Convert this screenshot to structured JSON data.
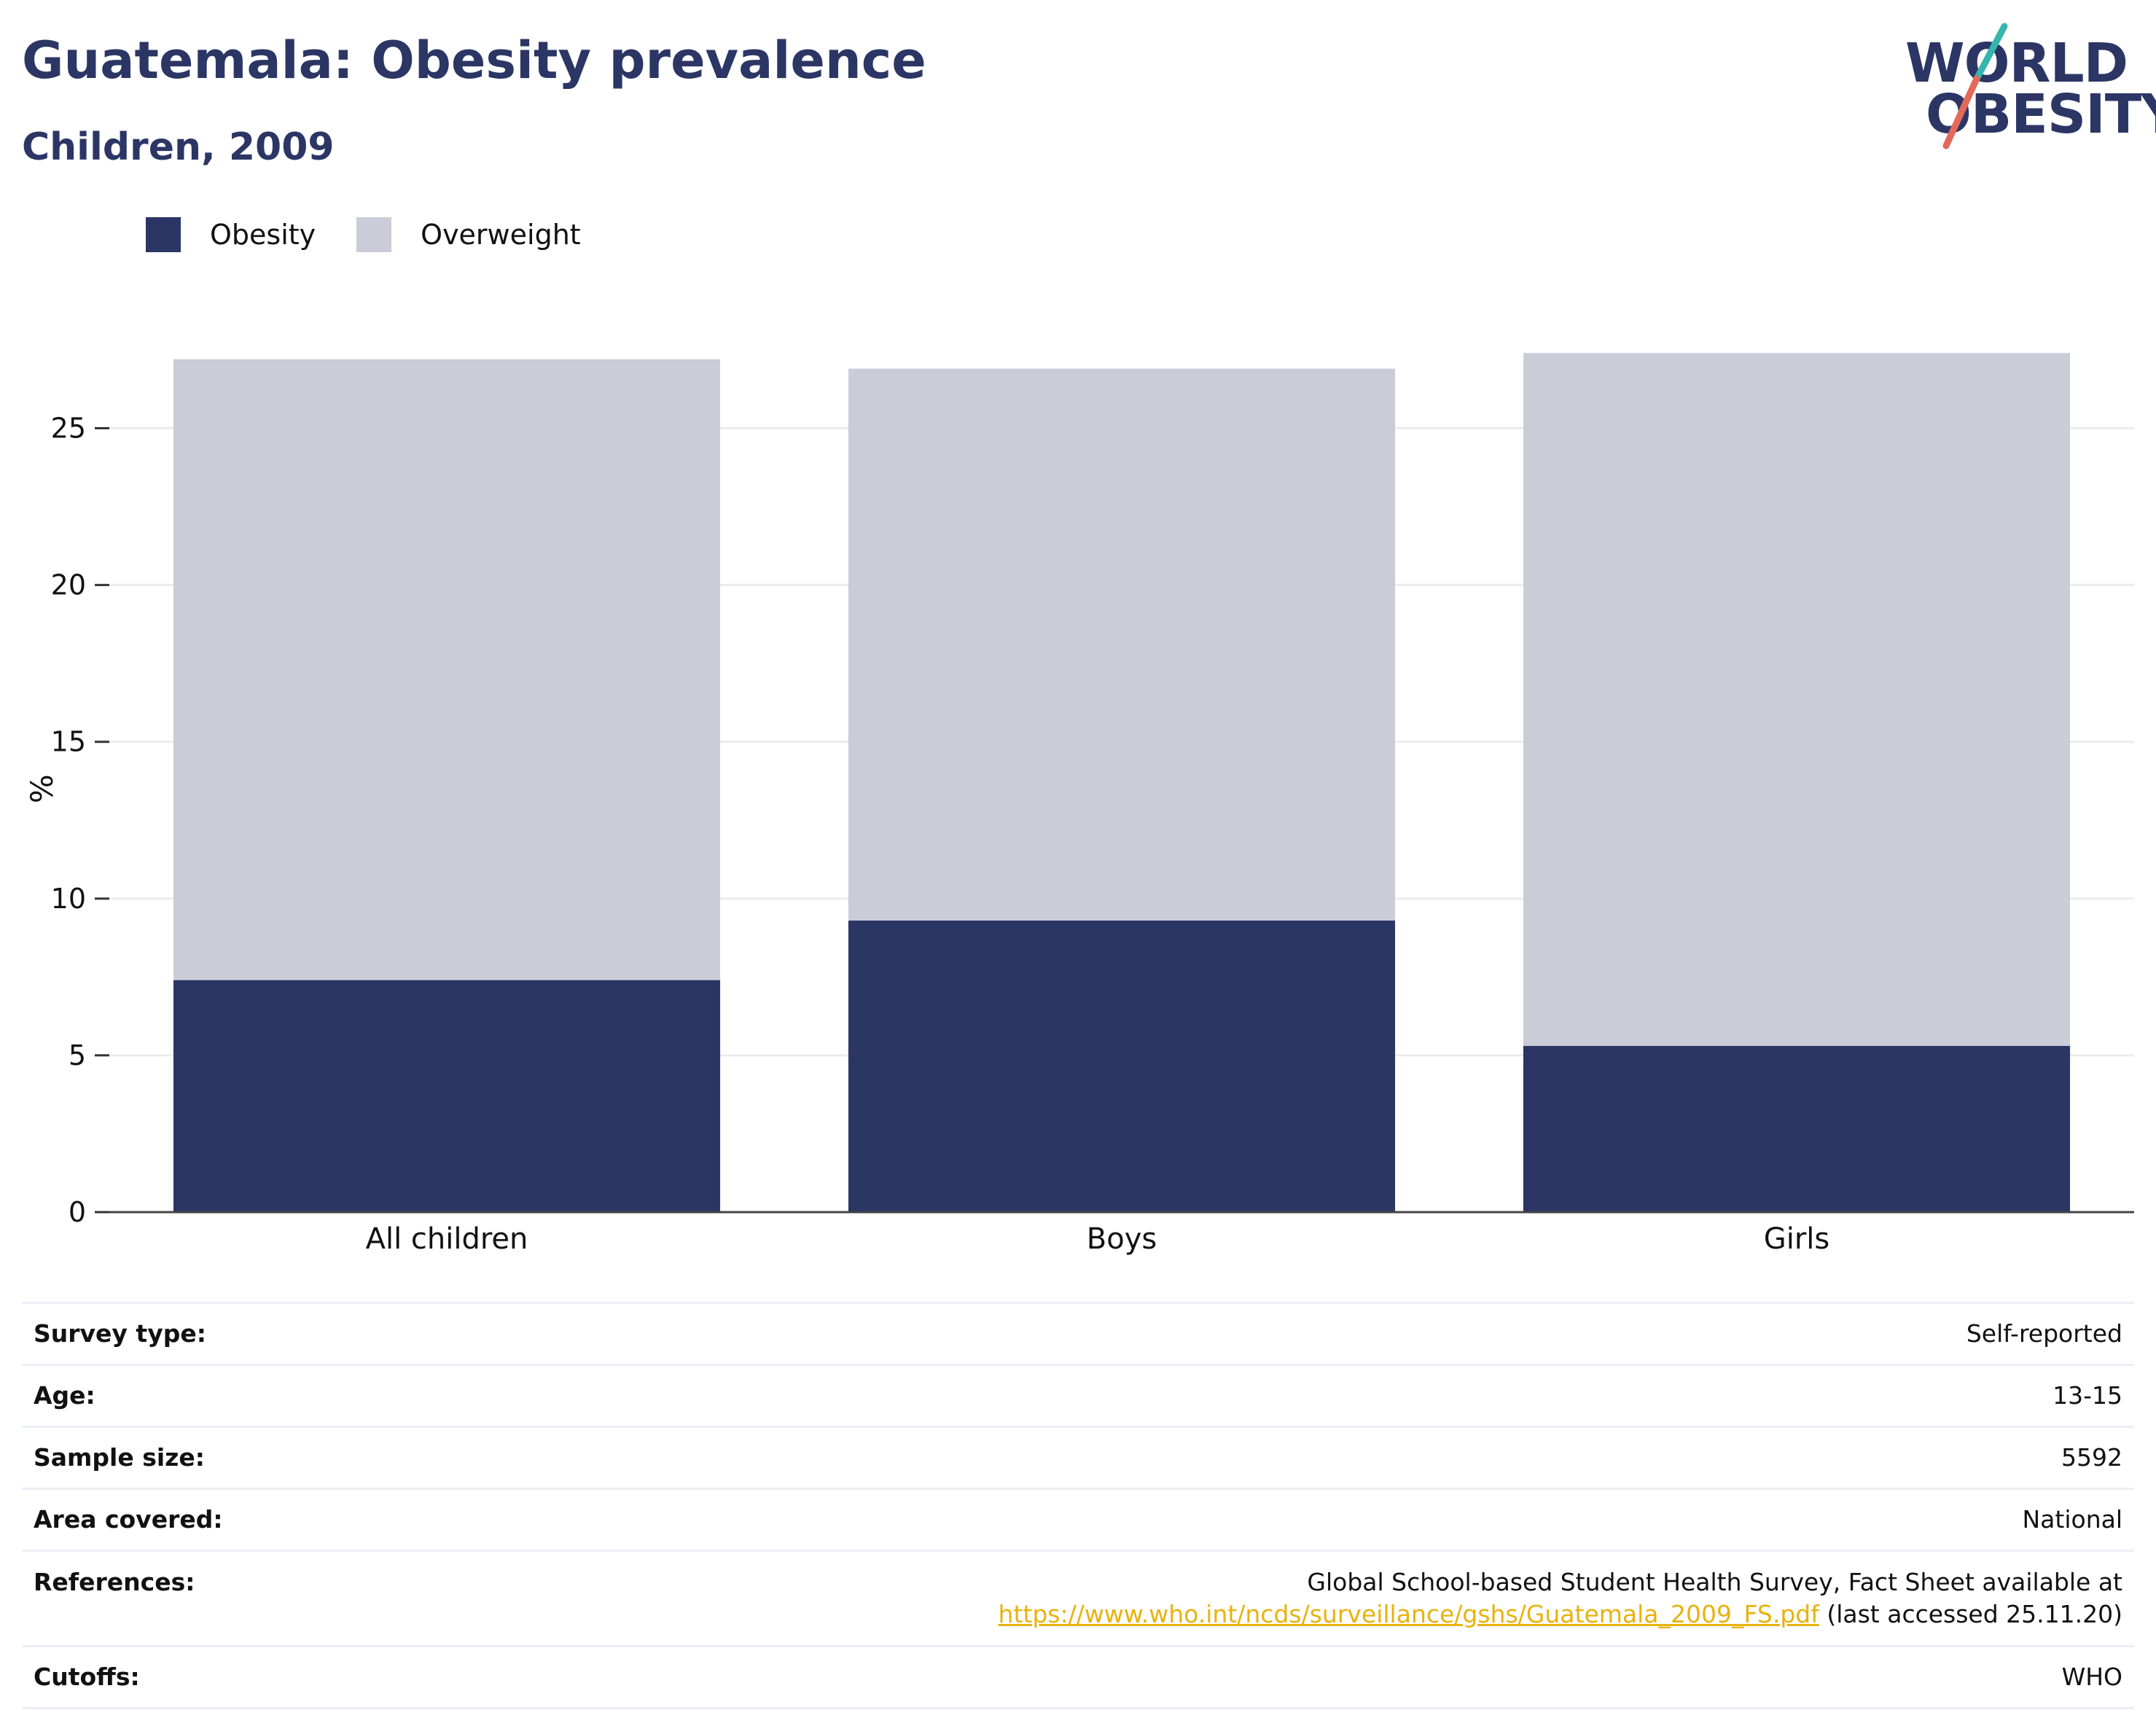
{
  "header": {
    "title": "Guatemala: Obesity prevalence",
    "subtitle": "Children, 2009"
  },
  "logo": {
    "line1": "WORLD",
    "line2": "OBESITY"
  },
  "colors": {
    "obesity": "#2b3665",
    "overweight": "#cbccd8",
    "title": "#2b3665",
    "link": "#e8b20e",
    "logo_slash_top": "#34b5ae",
    "logo_slash_bottom": "#e36a5a"
  },
  "legend": {
    "items": [
      {
        "label": "Obesity",
        "color": "#2b3665"
      },
      {
        "label": "Overweight",
        "color": "#cbccd8"
      }
    ]
  },
  "chart_data": {
    "type": "bar",
    "stacked": true,
    "categories": [
      "All children",
      "Boys",
      "Girls"
    ],
    "series": [
      {
        "name": "Obesity",
        "values": [
          7.4,
          9.3,
          5.3
        ],
        "color": "#2b3665"
      },
      {
        "name": "Overweight",
        "values": [
          19.8,
          17.6,
          22.1
        ],
        "color": "#cbccd8"
      }
    ],
    "ylabel": "%",
    "xlabel": "",
    "ylim": [
      0,
      27.5
    ],
    "yticks": [
      0,
      5,
      10,
      15,
      20,
      25
    ],
    "grid": true,
    "legend_position": "top-left"
  },
  "info": {
    "rows": [
      {
        "key": "Survey type:",
        "value": "Self-reported"
      },
      {
        "key": "Age:",
        "value": "13-15"
      },
      {
        "key": "Sample size:",
        "value": "5592"
      },
      {
        "key": "Area covered:",
        "value": "National"
      }
    ],
    "references": {
      "key": "References:",
      "line1": "Global School-based Student Health Survey, Fact Sheet available at",
      "link": "https://www.who.int/ncds/surveillance/gshs/Guatemala_2009_FS.pdf",
      "suffix": " (last accessed 25.11.20)"
    },
    "cutoffs": {
      "key": "Cutoffs:",
      "value": "WHO"
    }
  }
}
